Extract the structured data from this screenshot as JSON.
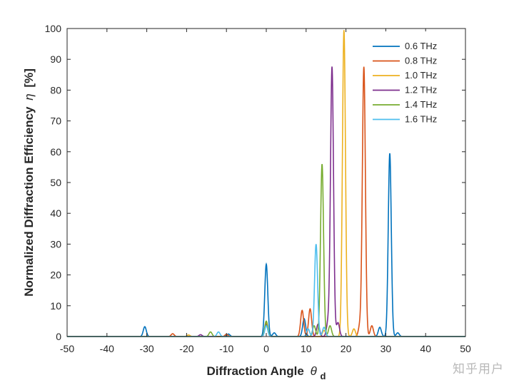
{
  "watermark": "知乎用户",
  "chart_data": {
    "type": "line",
    "title": "",
    "xlabel": "Diffraction Angle",
    "xlabel_symbol": "θ",
    "xlabel_subscript": "d",
    "ylabel": "Normalized Diffraction Efficiency",
    "ylabel_symbol": "η",
    "ylabel_unit": "[%]",
    "xlim": [
      -50,
      50
    ],
    "ylim": [
      0,
      100
    ],
    "xticks": [
      -50,
      -40,
      -30,
      -20,
      -10,
      0,
      10,
      20,
      30,
      40,
      50
    ],
    "yticks": [
      0,
      10,
      20,
      30,
      40,
      50,
      60,
      70,
      80,
      90,
      100
    ],
    "grid": false,
    "legend_position": "top-right",
    "series": [
      {
        "name": "0.6 THz",
        "color": "#0072BD",
        "peaks": [
          [
            -30.5,
            3.2
          ],
          [
            -9.5,
            0.8
          ],
          [
            0,
            23.5
          ],
          [
            2,
            1.2
          ],
          [
            9.5,
            5.8
          ],
          [
            28.5,
            3.0
          ],
          [
            31,
            59.5
          ],
          [
            33,
            1.2
          ]
        ]
      },
      {
        "name": "0.8 THz",
        "color": "#D95319",
        "peaks": [
          [
            -23.5,
            0.9
          ],
          [
            -10,
            0.7
          ],
          [
            0,
            4.5
          ],
          [
            9,
            8.5
          ],
          [
            11,
            9.0
          ],
          [
            23.5,
            3.5
          ],
          [
            24.5,
            87.5
          ],
          [
            26.5,
            3.5
          ]
        ]
      },
      {
        "name": "1.0 THz",
        "color": "#EDB120",
        "peaks": [
          [
            -19.5,
            0.5
          ],
          [
            0,
            4.0
          ],
          [
            14.5,
            2.0
          ],
          [
            19.5,
            99.5
          ],
          [
            22,
            2.5
          ]
        ]
      },
      {
        "name": "1.2 THz",
        "color": "#7E2F8E",
        "peaks": [
          [
            -16.5,
            0.6
          ],
          [
            0,
            3.8
          ],
          [
            13,
            4.0
          ],
          [
            15.5,
            4.5
          ],
          [
            16.5,
            87.5
          ],
          [
            18,
            4.5
          ]
        ]
      },
      {
        "name": "1.4 THz",
        "color": "#77AC30",
        "peaks": [
          [
            -14,
            1.5
          ],
          [
            0,
            5.0
          ],
          [
            12,
            3.5
          ],
          [
            14,
            56.0
          ],
          [
            16,
            3.5
          ]
        ]
      },
      {
        "name": "1.6 THz",
        "color": "#4DBEEE",
        "peaks": [
          [
            -12,
            1.5
          ],
          [
            0,
            3.5
          ],
          [
            10.5,
            2.5
          ],
          [
            12.5,
            30.0
          ],
          [
            14.5,
            3.0
          ]
        ]
      }
    ]
  }
}
